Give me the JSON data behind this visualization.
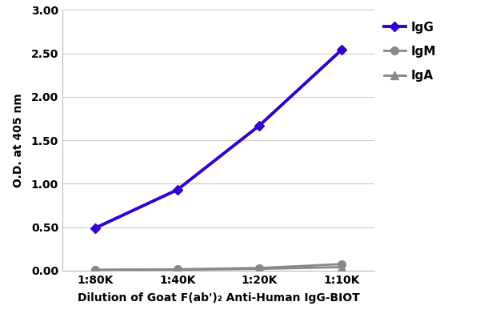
{
  "x_positions": [
    1,
    2,
    3,
    4
  ],
  "x_labels": [
    "1:80K",
    "1:40K",
    "1:20K",
    "1:10K"
  ],
  "IgG": [
    0.49,
    0.93,
    1.67,
    2.54
  ],
  "IgM": [
    0.01,
    0.015,
    0.03,
    0.075
  ],
  "IgA": [
    0.005,
    0.01,
    0.02,
    0.04
  ],
  "IgG_color": "#3300cc",
  "IgM_color": "#888888",
  "IgA_color": "#888888",
  "ylabel": "O.D. at 405 nm",
  "xlabel": "Dilution of Goat F(ab')₂ Anti-Human IgG-BIOT",
  "ylim": [
    0,
    3.0
  ],
  "yticks": [
    0.0,
    0.5,
    1.0,
    1.5,
    2.0,
    2.5,
    3.0
  ],
  "legend_labels": [
    "IgG",
    "IgM",
    "IgA"
  ],
  "bg_color": "#ffffff",
  "plot_bg_color": "#ffffff",
  "grid_color": "#cccccc"
}
